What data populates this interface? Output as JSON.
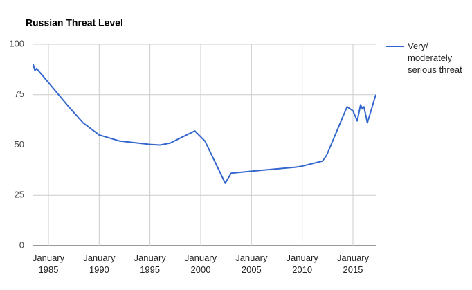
{
  "chart_data": {
    "type": "line",
    "title": "Russian Threat Level",
    "x": [
      "1983-07",
      "1983-09",
      "1983-11",
      "1985-01",
      "1987-01",
      "1988-06",
      "1990-01",
      "1992-01",
      "1995-01",
      "1996-01",
      "1997-01",
      "1999-06",
      "2000-06",
      "2002-06",
      "2003-01",
      "2005-01",
      "2009-06",
      "2010-01",
      "2012-01",
      "2012-06",
      "2013-06",
      "2014-06",
      "2015-01",
      "2015-06",
      "2015-10",
      "2015-12",
      "2016-02",
      "2016-06",
      "2017-04"
    ],
    "series": [
      {
        "name": "Very/ moderately serious threat",
        "color": "#3366cc",
        "values": [
          90,
          87,
          88,
          81,
          69,
          61,
          55,
          52,
          50.3,
          50,
          51,
          57,
          52,
          31,
          36,
          37,
          39,
          39.5,
          42,
          45,
          57,
          69,
          67,
          62,
          70,
          68,
          69,
          61,
          75
        ]
      }
    ],
    "xlim": [
      "1983-07",
      "2017-04"
    ],
    "xticks": [
      {
        "value": "1985-01",
        "label": "January 1985"
      },
      {
        "value": "1990-01",
        "label": "January 1990"
      },
      {
        "value": "1995-01",
        "label": "January 1995"
      },
      {
        "value": "2000-01",
        "label": "January 2000"
      },
      {
        "value": "2005-01",
        "label": "January 2005"
      },
      {
        "value": "2010-01",
        "label": "January 2010"
      },
      {
        "value": "2015-01",
        "label": "January 2015"
      }
    ],
    "ylim": [
      0,
      100
    ],
    "yticks": [
      0,
      25,
      50,
      75,
      100
    ],
    "grid": true,
    "legend": "right"
  }
}
